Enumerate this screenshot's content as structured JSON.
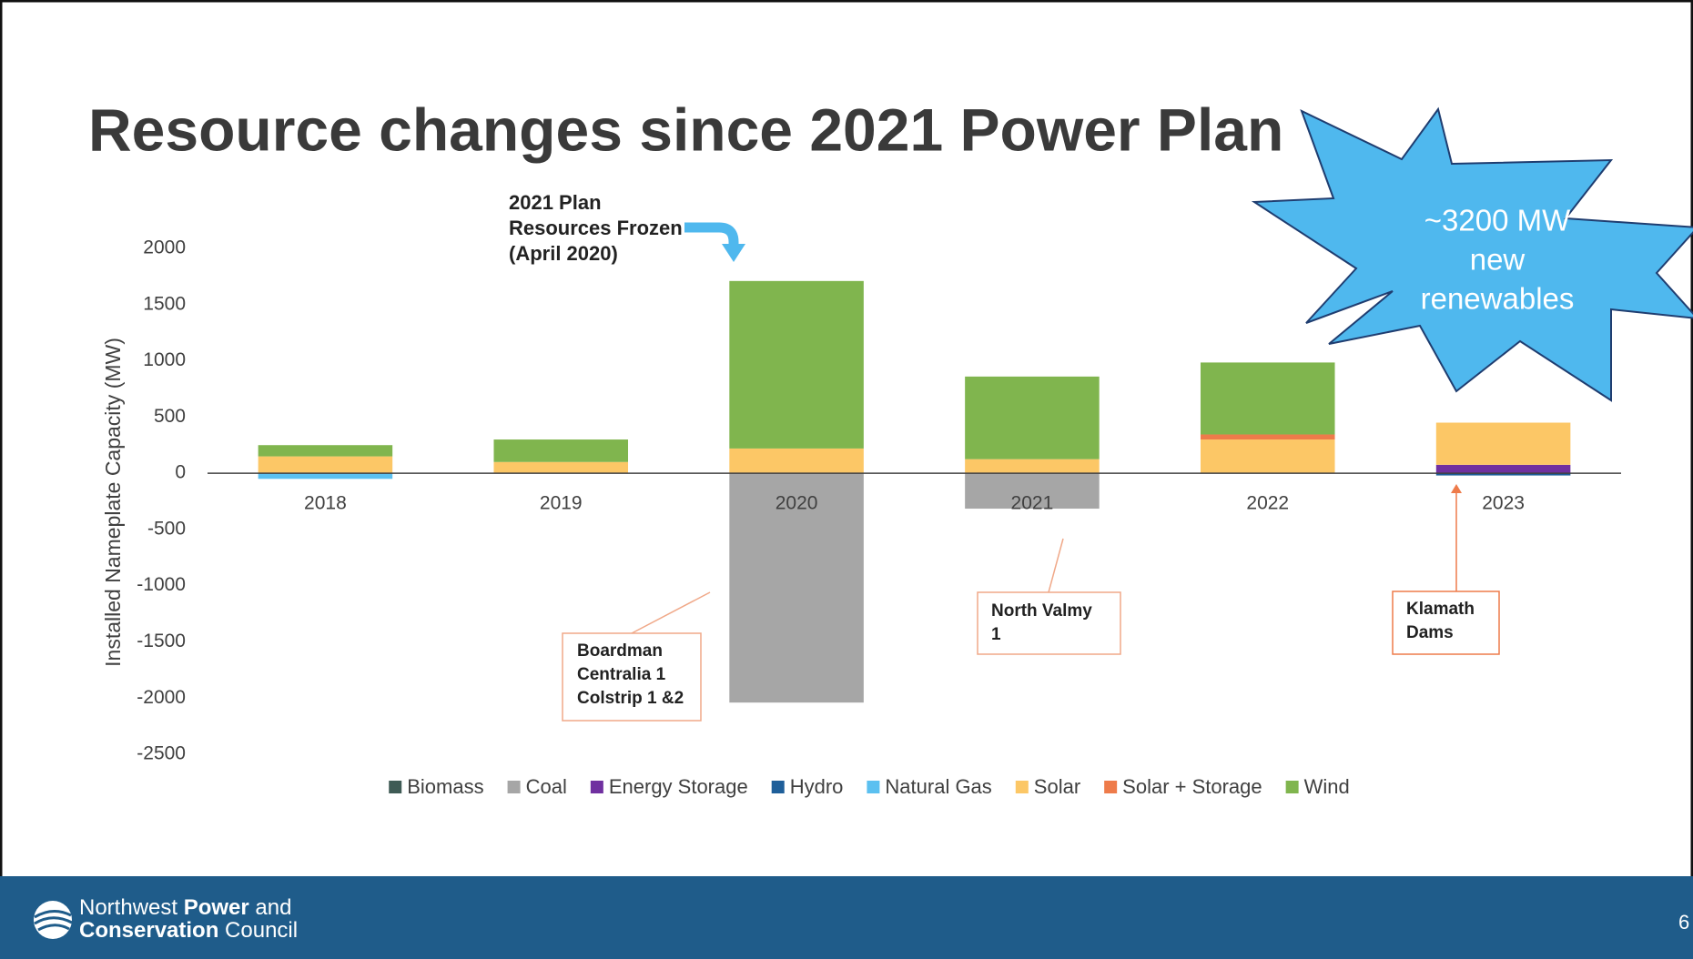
{
  "chart_data": {
    "type": "bar",
    "stacked": true,
    "title": "Resource changes since 2021 Power Plan",
    "y_label": "Installed Nameplate Capacity (MW)",
    "categories": [
      "2018",
      "2019",
      "2020",
      "2021",
      "2022",
      "2023"
    ],
    "series": [
      {
        "name": "Biomass",
        "color": "#3f5b55",
        "values": [
          0,
          0,
          0,
          0,
          0,
          0
        ]
      },
      {
        "name": "Coal",
        "color": "#a6a6a6",
        "values": [
          0,
          0,
          -2040,
          -315,
          0,
          0
        ]
      },
      {
        "name": "Energy Storage",
        "color": "#7030a0",
        "values": [
          0,
          0,
          0,
          0,
          0,
          75
        ]
      },
      {
        "name": "Hydro",
        "color": "#1f5f9a",
        "values": [
          0,
          0,
          0,
          0,
          0,
          -20
        ]
      },
      {
        "name": "Natural Gas",
        "color": "#5bc0f0",
        "values": [
          -50,
          0,
          0,
          0,
          0,
          0
        ]
      },
      {
        "name": "Solar",
        "color": "#fcc766",
        "values": [
          150,
          100,
          220,
          125,
          300,
          375
        ]
      },
      {
        "name": "Solar + Storage",
        "color": "#ee7b4a",
        "values": [
          0,
          0,
          0,
          0,
          45,
          0
        ]
      },
      {
        "name": "Wind",
        "color": "#80b54e",
        "values": [
          100,
          200,
          1490,
          735,
          640,
          0
        ]
      }
    ],
    "ylim": [
      -2500,
      2000
    ],
    "yticks": [
      -2500,
      -2000,
      -1500,
      -1000,
      -500,
      0,
      500,
      1000,
      1500,
      2000
    ],
    "legend": "bottom",
    "annotations": [
      [
        "2021 Plan",
        "Resources Frozen",
        "(April 2020)"
      ],
      [
        "Boardman",
        "Centralia 1",
        "Colstrip 1 &2"
      ],
      [
        "North Valmy",
        "1"
      ],
      [
        "Klamath",
        "Dams"
      ]
    ],
    "callout": [
      "~3200 MW",
      "new",
      "renewables"
    ]
  },
  "footer": {
    "org": [
      "Northwest",
      "Power",
      "and",
      "Conservation",
      "Council"
    ],
    "page": "6"
  }
}
